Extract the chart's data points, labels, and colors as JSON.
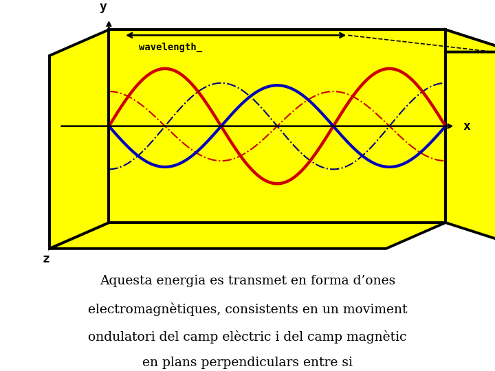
{
  "bg_color": "#ffff00",
  "white": "#ffffff",
  "text_color": "#000000",
  "caption_lines": [
    "Aquesta energia es transmet en forma d’ones",
    "electromagnètiques, consistents en un moviment",
    "ondulatori del camp elèctric i del camp magnètic",
    "en plans perpendiculars entre si"
  ],
  "caption_fontsize": 13.5,
  "wave_color_red": "#cc0000",
  "wave_color_blue": "#0000bb",
  "wave_color_dashed_blue": "#000088",
  "wave_color_dashed_red": "#cc0000",
  "wavelength_label": "wavelength_",
  "axis_x_label": "x",
  "axis_y_label": "y",
  "axis_z_label": "z",
  "box_color": "#000000"
}
